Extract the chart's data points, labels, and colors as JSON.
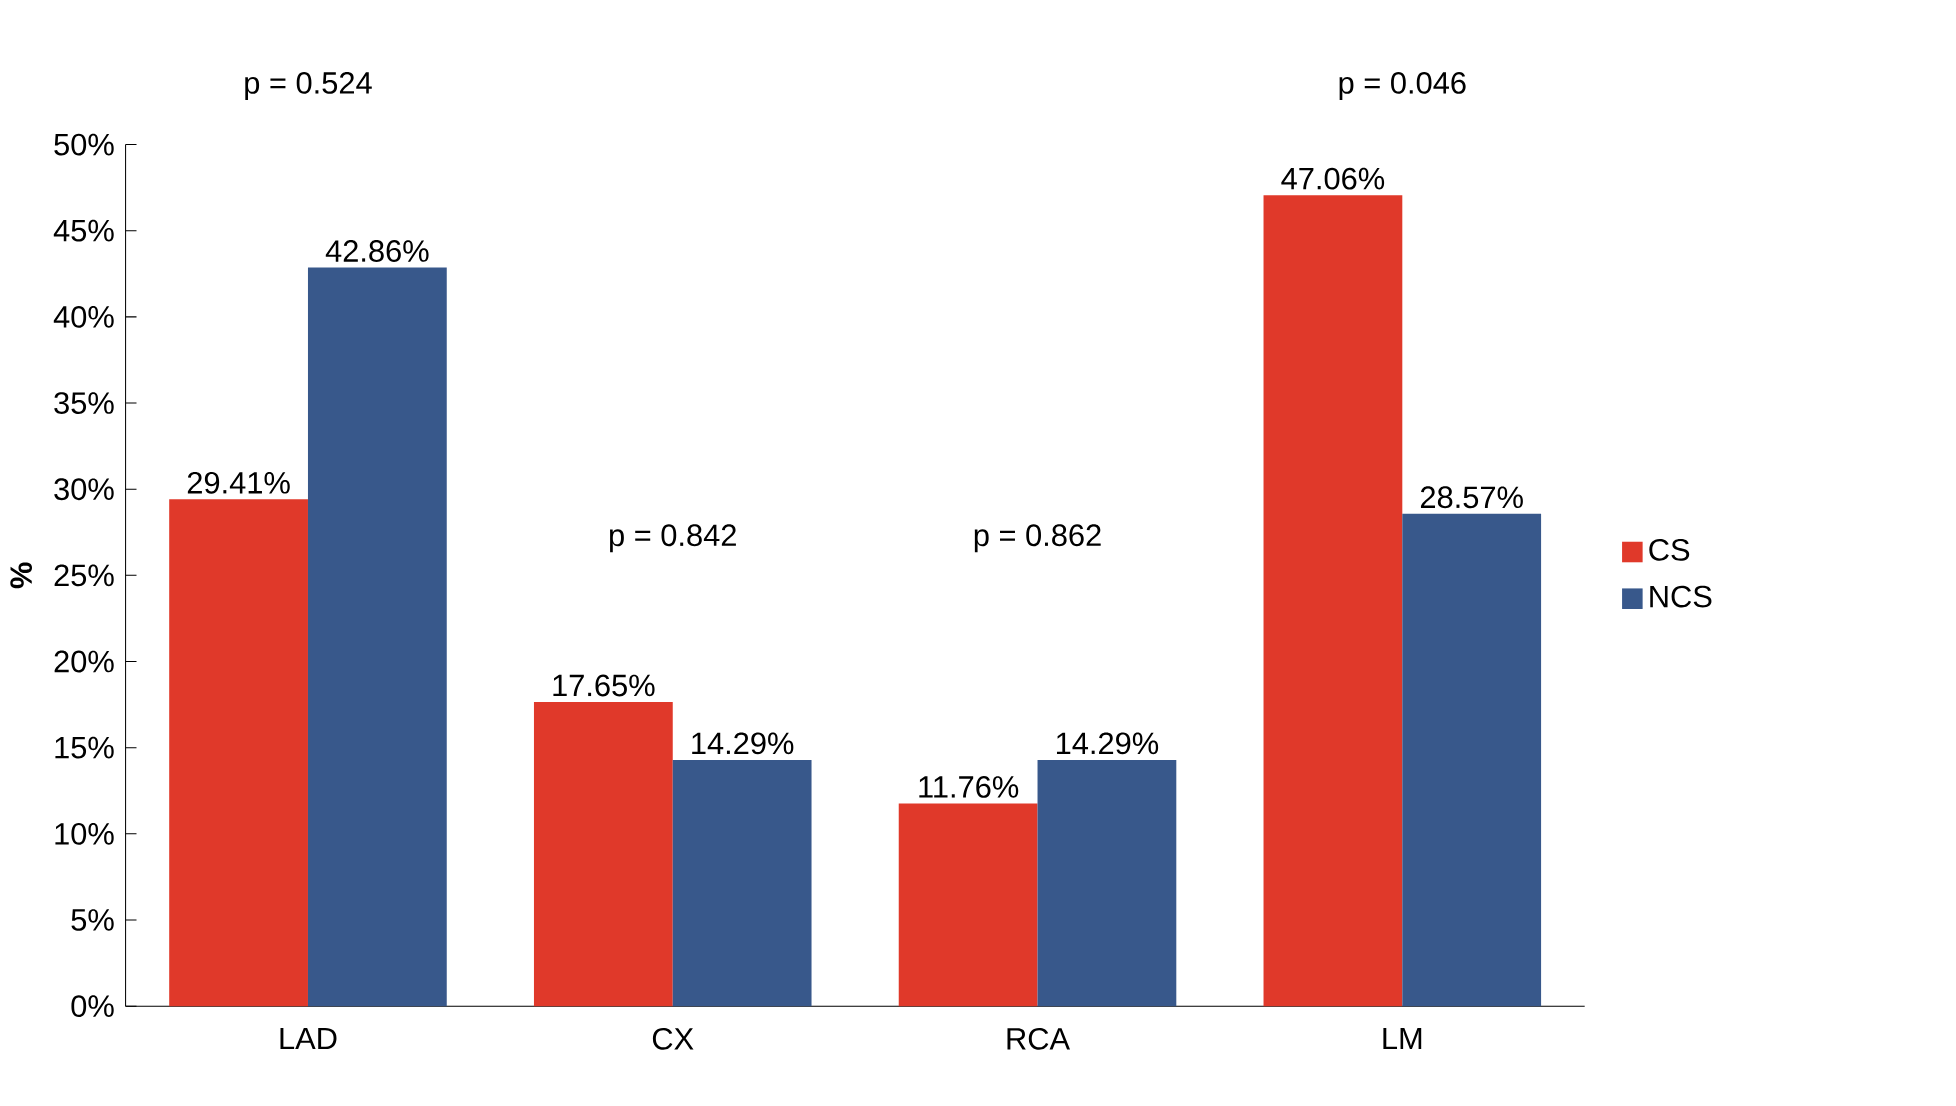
{
  "chart_data": {
    "type": "bar",
    "ylabel": "%",
    "categories": [
      "LAD",
      "CX",
      "RCA",
      "LM"
    ],
    "series": [
      {
        "name": "CS",
        "color": "#e0392a",
        "values": [
          29.41,
          17.65,
          11.76,
          47.06
        ],
        "value_labels": [
          "29.41%",
          "17.65%",
          "11.76%",
          "47.06%"
        ]
      },
      {
        "name": "NCS",
        "color": "#38588b",
        "values": [
          42.86,
          14.29,
          14.29,
          28.57
        ],
        "value_labels": [
          "42.86%",
          "14.29%",
          "14.29%",
          "28.57%"
        ]
      }
    ],
    "ylim": [
      0,
      50
    ],
    "yticks": [
      {
        "value": 0,
        "label": "0%"
      },
      {
        "value": 5,
        "label": "5%"
      },
      {
        "value": 10,
        "label": "10%"
      },
      {
        "value": 15,
        "label": "15%"
      },
      {
        "value": 20,
        "label": "20%"
      },
      {
        "value": 25,
        "label": "25%"
      },
      {
        "value": 30,
        "label": "30%"
      },
      {
        "value": 35,
        "label": "35%"
      },
      {
        "value": 40,
        "label": "40%"
      },
      {
        "value": 45,
        "label": "45%"
      },
      {
        "value": 50,
        "label": "50%"
      }
    ],
    "annotations": [
      "p = 0.524",
      "p = 0.842",
      "p = 0.862",
      "p = 0.046"
    ],
    "legend": "right",
    "grid": false
  }
}
